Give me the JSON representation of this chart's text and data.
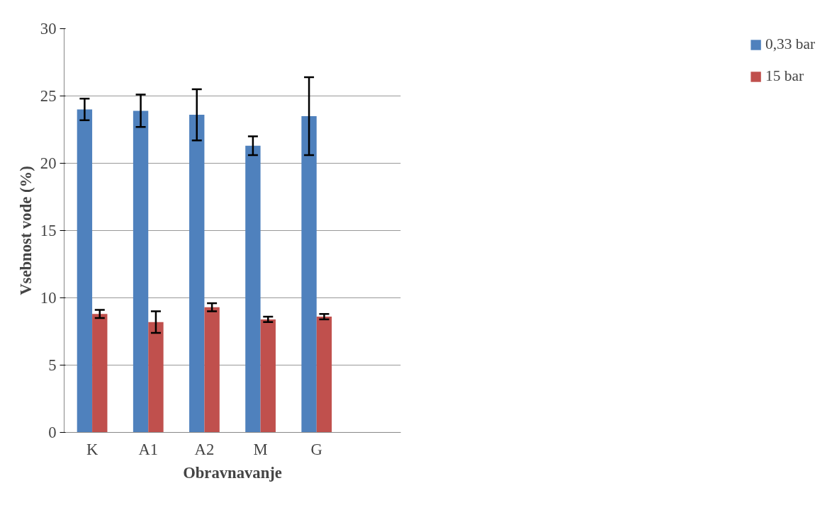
{
  "chart_data": {
    "type": "bar",
    "xlabel": "Obravnavanje",
    "ylabel": "Vsebnost vode (%)",
    "categories": [
      "K",
      "A1",
      "A2",
      "M",
      "G",
      null
    ],
    "series": [
      {
        "name": "0,33 bar",
        "color": "#4f81bd",
        "values": [
          24.0,
          23.9,
          23.6,
          21.3,
          23.5,
          null
        ],
        "errors": [
          0.8,
          1.2,
          1.9,
          0.7,
          2.9,
          null
        ]
      },
      {
        "name": "15 bar",
        "color": "#c0504d",
        "values": [
          8.8,
          8.2,
          9.3,
          8.4,
          8.6,
          null
        ],
        "errors": [
          0.3,
          0.8,
          0.3,
          0.2,
          0.2,
          null
        ]
      }
    ],
    "ylim": [
      0,
      30
    ],
    "yticks": [
      0,
      5,
      10,
      15,
      20,
      25,
      30
    ],
    "grid": "y",
    "legend": "right"
  }
}
